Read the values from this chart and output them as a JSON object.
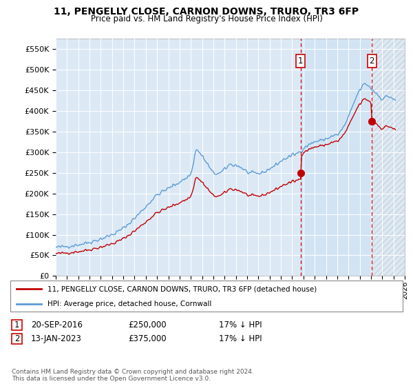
{
  "title": "11, PENGELLY CLOSE, CARNON DOWNS, TRURO, TR3 6FP",
  "subtitle": "Price paid vs. HM Land Registry's House Price Index (HPI)",
  "legend_label1": "11, PENGELLY CLOSE, CARNON DOWNS, TRURO, TR3 6FP (detached house)",
  "legend_label2": "HPI: Average price, detached house, Cornwall",
  "transaction1_date": "20-SEP-2016",
  "transaction1_price": 250000,
  "transaction1_note": "17% ↓ HPI",
  "transaction2_date": "13-JAN-2023",
  "transaction2_price": 375000,
  "transaction2_note": "17% ↓ HPI",
  "footer": "Contains HM Land Registry data © Crown copyright and database right 2024.\nThis data is licensed under the Open Government Licence v3.0.",
  "hpi_color": "#5b9bd5",
  "property_color": "#c00000",
  "vline_color": "#cc0000",
  "plot_bg_color": "#dce9f5",
  "shade_between_color": "#cfe2f3",
  "ylim": [
    0,
    575000
  ],
  "yticks": [
    0,
    50000,
    100000,
    150000,
    200000,
    250000,
    300000,
    350000,
    400000,
    450000,
    500000,
    550000
  ],
  "xlim_left": 1995.0,
  "xlim_right": 2026.0,
  "vline1_x": 2016.75,
  "vline2_x": 2023.08,
  "marker1_x": 2016.75,
  "marker1_y": 250000,
  "marker2_x": 2023.08,
  "marker2_y": 375000,
  "hpi_ratio": 0.83
}
